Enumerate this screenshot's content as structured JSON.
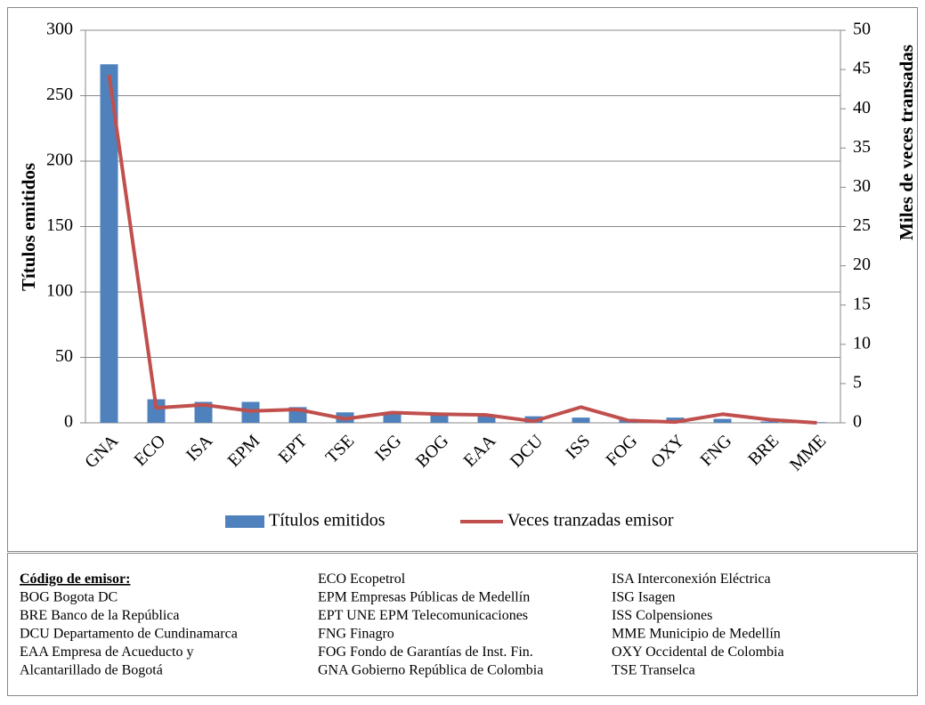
{
  "chart_data": {
    "type": "bar",
    "y_label": "Títulos emitidos",
    "y2_label": "Miles de veces transadas",
    "categories": [
      "GNA",
      "ECO",
      "ISA",
      "EPM",
      "EPT",
      "TSE",
      "ISG",
      "BOG",
      "EAA",
      "DCU",
      "ISS",
      "FOG",
      "OXY",
      "FNG",
      "BRE",
      "MME"
    ],
    "series": [
      {
        "name": "Títulos emitidos",
        "type": "bar",
        "color": "#4f81bd",
        "values": [
          274,
          18,
          16,
          16,
          12,
          8,
          7,
          6,
          6,
          5,
          4,
          3,
          4,
          3,
          1,
          0.5
        ]
      },
      {
        "name": "Veces tranzadas emisor",
        "type": "line",
        "axis": "y2",
        "color": "#c0504d",
        "values": [
          44.3,
          1.9,
          2.3,
          1.5,
          1.7,
          0.5,
          1.3,
          1.1,
          1.0,
          0.2,
          2.0,
          0.3,
          0.1,
          1.1,
          0.4,
          0
        ]
      }
    ],
    "ylim": [
      0,
      300
    ],
    "yticks": [
      0,
      50,
      100,
      150,
      200,
      250,
      300
    ],
    "y2lim": [
      0,
      50
    ],
    "y2ticks": [
      0,
      5,
      10,
      15,
      20,
      25,
      30,
      35,
      40,
      45,
      50
    ],
    "grid": true,
    "legend": "bottom"
  },
  "notes": {
    "heading": "Código de emisor:",
    "columns": [
      [
        "BOG Bogota DC",
        "BRE Banco de la República",
        "DCU Departamento de Cundinamarca",
        "EAA Empresa de Acueducto y",
        "Alcantarillado de Bogotá"
      ],
      [
        "ECO Ecopetrol",
        "EPM Empresas Públicas de Medellín",
        "EPT UNE EPM Telecomunicaciones",
        "FNG Finagro",
        "FOG Fondo de Garantías de Inst. Fin.",
        "GNA Gobierno República de Colombia"
      ],
      [
        "ISA Interconexión Eléctrica",
        "ISG Isagen",
        "ISS Colpensiones",
        "MME Municipio de Medellín",
        "OXY Occidental de Colombia",
        "TSE Transelca"
      ]
    ]
  }
}
